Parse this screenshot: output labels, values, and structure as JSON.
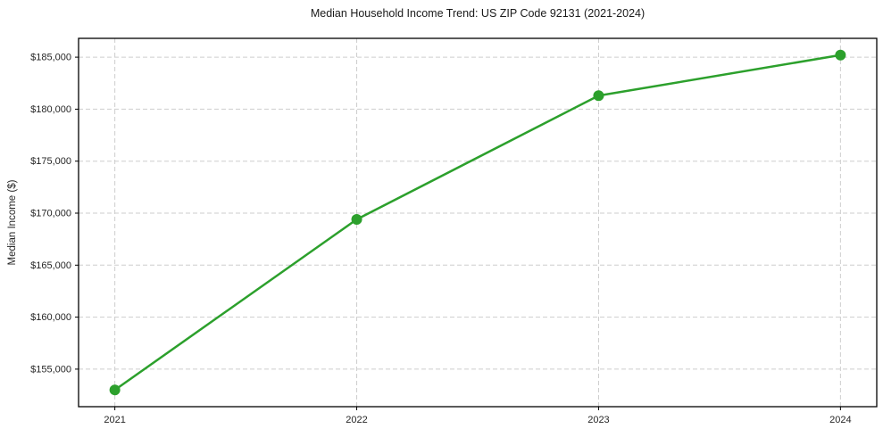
{
  "figure": {
    "title": "Median Household Income Trend: US ZIP Code 92131 (2021-2024)"
  },
  "chart_data": {
    "type": "line",
    "title": "Median Household Income Trend: US ZIP Code 92131 (2021-2024)",
    "xlabel": "",
    "ylabel": "Median Income ($)",
    "x": [
      2021,
      2022,
      2023,
      2024
    ],
    "values": [
      153000,
      169400,
      181300,
      185200
    ],
    "series": [
      {
        "name": "Median Household Income",
        "values": [
          153000,
          169400,
          181300,
          185200
        ]
      }
    ],
    "xticks": [
      2021,
      2022,
      2023,
      2024
    ],
    "yticks": [
      155000,
      160000,
      165000,
      170000,
      175000,
      180000,
      185000
    ],
    "ytick_labels": [
      "$155,000",
      "$160,000",
      "$165,000",
      "$170,000",
      "$175,000",
      "$180,000",
      "$185,000"
    ],
    "xlim": [
      2020.85,
      2024.15
    ],
    "ylim": [
      151390,
      186810
    ],
    "grid": "dashed",
    "legend": "none",
    "colors": {
      "line": "#2ca02c",
      "marker": "#2ca02c",
      "grid": "#cdcdcd",
      "axis": "#000000",
      "text": "#262626",
      "background": "#ffffff"
    }
  }
}
